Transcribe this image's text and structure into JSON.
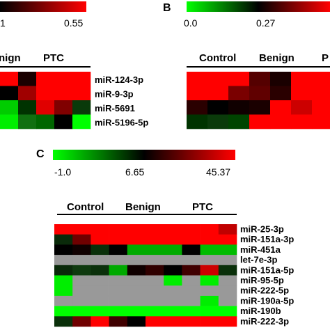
{
  "chart_data": [
    {
      "type": "heatmap",
      "panel": "",
      "colorbar": {
        "ticks": [
          "1",
          "0.55"
        ],
        "colors": [
          "#000000",
          "#ff0000"
        ]
      },
      "groups": [
        "nign",
        "PTC"
      ],
      "rows": [
        "miR-124-3p",
        "miR-9-3p",
        "miR-5691",
        "miR-5196-5p"
      ],
      "cells": [
        [
          "#ff0000",
          "#1a0000",
          "#ff0000",
          "#ff0000",
          "#ff0000"
        ],
        [
          "#000000",
          "#a00000",
          "#ff0000",
          "#ff0000",
          "#ff0000"
        ],
        [
          "#00cc00",
          "#003300",
          "#e00000",
          "#800000",
          "#0a3a0a"
        ],
        [
          "#00ee00",
          "#107010",
          "#006600",
          "#000000",
          "#00ff00"
        ]
      ]
    },
    {
      "type": "heatmap",
      "panel": "B",
      "colorbar": {
        "ticks": [
          "0.0",
          "0.27"
        ],
        "colors": [
          "#00ff00",
          "#000000",
          "#ff0000"
        ]
      },
      "groups": [
        "Control",
        "Benign",
        "P"
      ],
      "rows": [],
      "cells": [
        [
          "#ff0000",
          "#ff0000",
          "#ff0000",
          "#550000",
          "#1a0000",
          "#ff0000",
          "#ff0000"
        ],
        [
          "#ff0000",
          "#ff0000",
          "#7a0000",
          "#600000",
          "#2a0000",
          "#ff0000",
          "#ff0000"
        ],
        [
          "#2a0000",
          "#000000",
          "#100000",
          "#1a0000",
          "#ff0000",
          "#cc0000",
          "#ff0000"
        ],
        [
          "#003300",
          "#0a3a0a",
          "#004400",
          "#ff0000",
          "#ff0000",
          "#ff0000",
          "#ff0000"
        ]
      ]
    },
    {
      "type": "heatmap",
      "panel": "C",
      "colorbar": {
        "ticks": [
          "-1.0",
          "6.65",
          "45.37"
        ],
        "colors": [
          "#00ff00",
          "#000000",
          "#ff0000"
        ]
      },
      "groups": [
        "Control",
        "Benign",
        "PTC"
      ],
      "rows": [
        "miR-25-3p",
        "miR-151a-3p",
        "miR-451a",
        "let-7e-3p",
        "miR-151a-5p",
        "miR-95-5p",
        "miR-222-5p",
        "miR-190a-5p",
        "miR-190b",
        "miR-222-3p"
      ],
      "cells": [
        [
          "#ff0000",
          "#ff0000",
          "#ff0000",
          "#ff0000",
          "#ff0000",
          "#ff0000",
          "#ff0000",
          "#ff0000",
          "#ff0000",
          "#c00000"
        ],
        [
          "#0a2a0a",
          "#700000",
          "#ff0000",
          "#ff0000",
          "#ff0000",
          "#ff0000",
          "#ff0000",
          "#ff0000",
          "#ff0000",
          "#ff0000"
        ],
        [
          "#000000",
          "#100000",
          "#0a300a",
          "#000000",
          "#00aa00",
          "#00aa00",
          "#00aa00",
          "#000000",
          "#00bb00",
          "#00bb00"
        ],
        [
          "#999999",
          "#999999",
          "#999999",
          "#999999",
          "#999999",
          "#999999",
          "#999999",
          "#999999",
          "#999999",
          "#999999"
        ],
        [
          "#0a2a0a",
          "#0f3a0f",
          "#0a300a",
          "#00aa00",
          "#100000",
          "#300000",
          "#000000",
          "#400000",
          "#cc0000",
          "#0a300a"
        ],
        [
          "#00ee00",
          "#999999",
          "#999999",
          "#999999",
          "#999999",
          "#999999",
          "#00ee00",
          "#999999",
          "#00ee00",
          "#999999"
        ],
        [
          "#00ee00",
          "#999999",
          "#999999",
          "#999999",
          "#999999",
          "#999999",
          "#999999",
          "#999999",
          "#999999",
          "#999999"
        ],
        [
          "#999999",
          "#999999",
          "#999999",
          "#999999",
          "#999999",
          "#999999",
          "#999999",
          "#999999",
          "#00ee00",
          "#999999"
        ],
        [
          "#00ff00",
          "#00ff00",
          "#00ff00",
          "#00ff00",
          "#00ff00",
          "#00ff00",
          "#00ff00",
          "#00ff00",
          "#00ff00",
          "#00ff00"
        ],
        [
          "#0a300a",
          "#700000",
          "#ff0000",
          "#400000",
          "#000000",
          "#ff0000",
          "#ff0000",
          "#ff0000",
          "#ff0000",
          "#ff0000"
        ]
      ]
    }
  ]
}
